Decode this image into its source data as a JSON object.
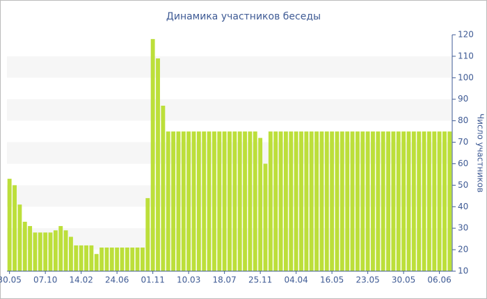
{
  "chart_data": {
    "type": "bar",
    "title": "Динамика участников беседы",
    "y_label": "Число участников",
    "categories": [
      "30.05",
      null,
      null,
      null,
      null,
      null,
      null,
      "07.10",
      null,
      null,
      null,
      null,
      null,
      null,
      "14.02",
      null,
      null,
      null,
      null,
      null,
      null,
      "24.06",
      null,
      null,
      null,
      null,
      null,
      null,
      "01.11",
      null,
      null,
      null,
      null,
      null,
      null,
      "10.03",
      null,
      null,
      null,
      null,
      null,
      null,
      "18.07",
      null,
      null,
      null,
      null,
      null,
      null,
      "25.11",
      null,
      null,
      null,
      null,
      null,
      null,
      "04.04",
      null,
      null,
      null,
      null,
      null,
      null,
      "16.05",
      null,
      null,
      null,
      null,
      null,
      null,
      "23.05",
      null,
      null,
      null,
      null,
      null,
      null,
      "30.05",
      null,
      null,
      null,
      null,
      null,
      null,
      "06.06",
      null,
      null
    ],
    "values": [
      53,
      50,
      41,
      33,
      31,
      28,
      28,
      28,
      28,
      29,
      31,
      29,
      26,
      22,
      22,
      22,
      22,
      18,
      21,
      21,
      21,
      21,
      21,
      21,
      21,
      21,
      21,
      44,
      118,
      109,
      87,
      75,
      75,
      75,
      75,
      75,
      75,
      75,
      75,
      75,
      75,
      75,
      75,
      75,
      75,
      75,
      75,
      75,
      75,
      72,
      60,
      75,
      75,
      75,
      75,
      75,
      75,
      75,
      75,
      75,
      75,
      75,
      75,
      75,
      75,
      75,
      75,
      75,
      75,
      75,
      75,
      75,
      75,
      75,
      75,
      75,
      75,
      75,
      75,
      75,
      75,
      75,
      75,
      75,
      75,
      75,
      75
    ],
    "color": "#bcdf3a",
    "ylim": [
      10,
      120
    ],
    "yticks": [
      10,
      20,
      30,
      40,
      50,
      60,
      70,
      80,
      90,
      100,
      110,
      120
    ],
    "grid_bands": true,
    "y_axis_side": "right"
  }
}
